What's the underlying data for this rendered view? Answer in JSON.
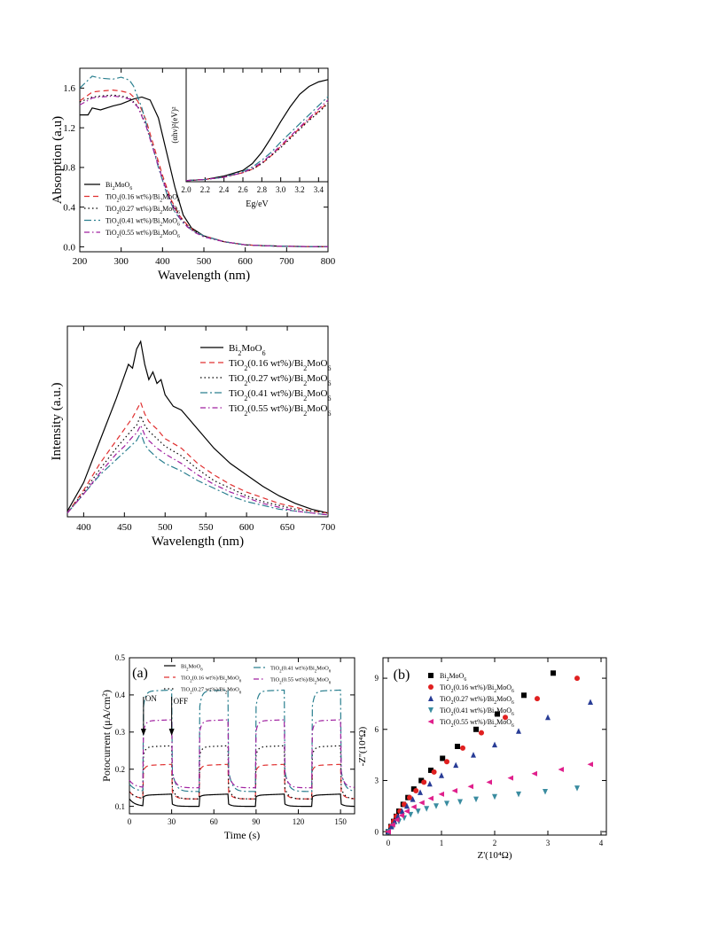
{
  "chart_data": [
    {
      "id": "absorption",
      "type": "line",
      "xlabel": "Wavelength (nm)",
      "ylabel": "Absorption (a.u)",
      "xlim": [
        200,
        800
      ],
      "ylim": [
        -0.05,
        1.8
      ],
      "xticks": [
        200,
        300,
        400,
        500,
        600,
        700,
        800
      ],
      "yticks": [
        0.0,
        0.4,
        0.8,
        1.2,
        1.6
      ],
      "ytick_labels": [
        "0.0",
        "0.4",
        "0.8",
        "1.2",
        "1.6"
      ],
      "legend": "bottom-left",
      "series": [
        {
          "name": "Bi2MoO6",
          "color": "#000000",
          "dash": "none",
          "x": [
            200,
            220,
            230,
            250,
            280,
            300,
            330,
            350,
            370,
            390,
            410,
            430,
            450,
            470,
            500,
            550,
            600,
            650,
            700,
            800
          ],
          "y": [
            1.33,
            1.33,
            1.4,
            1.38,
            1.42,
            1.44,
            1.49,
            1.51,
            1.48,
            1.3,
            0.95,
            0.6,
            0.32,
            0.19,
            0.11,
            0.05,
            0.02,
            0.01,
            0.005,
            0.0
          ]
        },
        {
          "name": "TiO2(0.16 wt%)/Bi2MoO6",
          "color": "#e03030",
          "dash": "6,4",
          "x": [
            200,
            230,
            250,
            280,
            300,
            320,
            340,
            360,
            380,
            400,
            420,
            440,
            460,
            480,
            500,
            550,
            600,
            650,
            700,
            800
          ],
          "y": [
            1.47,
            1.56,
            1.57,
            1.58,
            1.57,
            1.55,
            1.47,
            1.28,
            1.0,
            0.72,
            0.48,
            0.32,
            0.22,
            0.15,
            0.11,
            0.05,
            0.02,
            0.01,
            0.005,
            0.0
          ]
        },
        {
          "name": "TiO2(0.27 wt%)/Bi2MoO6",
          "color": "#000000",
          "dash": "1.5,3",
          "x": [
            200,
            230,
            250,
            280,
            300,
            320,
            340,
            360,
            380,
            400,
            420,
            440,
            460,
            480,
            500,
            550,
            600,
            650,
            700,
            800
          ],
          "y": [
            1.46,
            1.51,
            1.52,
            1.53,
            1.52,
            1.5,
            1.42,
            1.23,
            0.96,
            0.69,
            0.46,
            0.31,
            0.21,
            0.15,
            0.1,
            0.05,
            0.02,
            0.01,
            0.005,
            0.0
          ]
        },
        {
          "name": "TiO2(0.41 wt%)/Bi2MoO6",
          "color": "#2a7f8f",
          "dash": "8,3,2,3",
          "x": [
            200,
            220,
            230,
            250,
            280,
            300,
            320,
            330,
            350,
            370,
            390,
            410,
            430,
            450,
            470,
            500,
            550,
            600,
            650,
            700,
            800
          ],
          "y": [
            1.6,
            1.68,
            1.72,
            1.7,
            1.69,
            1.71,
            1.68,
            1.62,
            1.4,
            1.1,
            0.8,
            0.54,
            0.35,
            0.24,
            0.17,
            0.11,
            0.05,
            0.02,
            0.01,
            0.005,
            0.0
          ]
        },
        {
          "name": "TiO2(0.55 wt%)/Bi2MoO6",
          "color": "#a020a0",
          "dash": "6,3,1.5,3",
          "x": [
            200,
            230,
            250,
            280,
            300,
            320,
            340,
            360,
            380,
            400,
            420,
            440,
            460,
            480,
            500,
            550,
            600,
            650,
            700,
            800
          ],
          "y": [
            1.43,
            1.5,
            1.51,
            1.52,
            1.51,
            1.49,
            1.41,
            1.22,
            0.95,
            0.68,
            0.45,
            0.3,
            0.2,
            0.14,
            0.1,
            0.05,
            0.02,
            0.01,
            0.005,
            0.0
          ]
        }
      ]
    },
    {
      "id": "absorption-inset",
      "type": "line",
      "xlabel": "Eg/eV",
      "ylabel": "(αhν)²(eV)²",
      "xlim": [
        2.0,
        3.5
      ],
      "ylim": [
        0,
        10
      ],
      "xticks": [
        2.0,
        2.2,
        2.4,
        2.6,
        2.8,
        3.0,
        3.2,
        3.4
      ],
      "xtick_labels": [
        "2.0",
        "2.2",
        "2.4",
        "2.6",
        "2.8",
        "3.0",
        "3.2",
        "3.4"
      ],
      "series": [
        {
          "name": "Bi2MoO6",
          "color": "#000000",
          "dash": "none",
          "x": [
            2.0,
            2.2,
            2.4,
            2.6,
            2.7,
            2.8,
            2.9,
            3.0,
            3.1,
            3.2,
            3.3,
            3.4,
            3.5
          ],
          "y": [
            0.1,
            0.2,
            0.5,
            1.0,
            1.6,
            2.6,
            3.9,
            5.3,
            6.6,
            7.7,
            8.4,
            8.8,
            9.0
          ]
        },
        {
          "name": "TiO2(0.16 wt%)/Bi2MoO6",
          "color": "#e03030",
          "dash": "6,4",
          "x": [
            2.0,
            2.2,
            2.4,
            2.6,
            2.7,
            2.8,
            2.9,
            3.0,
            3.1,
            3.2,
            3.3,
            3.4,
            3.5
          ],
          "y": [
            0.1,
            0.2,
            0.4,
            0.8,
            1.1,
            1.6,
            2.3,
            3.1,
            3.9,
            4.7,
            5.5,
            6.2,
            7.0
          ]
        },
        {
          "name": "TiO2(0.27 wt%)/Bi2MoO6",
          "color": "#000000",
          "dash": "1.5,3",
          "x": [
            2.0,
            2.2,
            2.4,
            2.6,
            2.7,
            2.8,
            2.9,
            3.0,
            3.1,
            3.2,
            3.3,
            3.4,
            3.5
          ],
          "y": [
            0.1,
            0.2,
            0.4,
            0.8,
            1.1,
            1.6,
            2.3,
            3.0,
            3.8,
            4.6,
            5.4,
            6.1,
            6.9
          ]
        },
        {
          "name": "TiO2(0.41 wt%)/Bi2MoO6",
          "color": "#2a7f8f",
          "dash": "8,3,2,3",
          "x": [
            2.0,
            2.2,
            2.4,
            2.6,
            2.7,
            2.8,
            2.9,
            3.0,
            3.1,
            3.2,
            3.3,
            3.4,
            3.5
          ],
          "y": [
            0.1,
            0.2,
            0.4,
            0.9,
            1.3,
            1.9,
            2.6,
            3.5,
            4.3,
            5.1,
            5.9,
            6.7,
            7.5
          ]
        },
        {
          "name": "TiO2(0.55 wt%)/Bi2MoO6",
          "color": "#a020a0",
          "dash": "6,3,1.5,3",
          "x": [
            2.0,
            2.2,
            2.4,
            2.6,
            2.7,
            2.8,
            2.9,
            3.0,
            3.1,
            3.2,
            3.3,
            3.4,
            3.5
          ],
          "y": [
            0.1,
            0.2,
            0.4,
            0.8,
            1.2,
            1.7,
            2.4,
            3.2,
            4.0,
            4.8,
            5.6,
            6.4,
            7.2
          ]
        }
      ]
    },
    {
      "id": "pl",
      "type": "line",
      "xlabel": "Wavelength (nm)",
      "ylabel": "Intensity (a.u.)",
      "xlim": [
        380,
        700
      ],
      "ylim": [
        0,
        100
      ],
      "xticks": [
        400,
        450,
        500,
        550,
        600,
        650,
        700
      ],
      "legend": "top-right",
      "series": [
        {
          "name": "Bi2MoO6",
          "color": "#000000",
          "dash": "none",
          "x": [
            380,
            400,
            420,
            440,
            450,
            455,
            460,
            465,
            470,
            475,
            480,
            485,
            490,
            495,
            500,
            510,
            520,
            540,
            560,
            580,
            600,
            620,
            640,
            660,
            680,
            700
          ],
          "y": [
            3,
            18,
            40,
            62,
            74,
            80,
            78,
            88,
            92,
            80,
            72,
            76,
            70,
            72,
            64,
            58,
            56,
            46,
            36,
            28,
            22,
            16,
            11,
            7,
            4,
            2
          ]
        },
        {
          "name": "TiO2(0.16 wt%)/Bi2MoO6",
          "color": "#e03030",
          "dash": "6,4",
          "x": [
            380,
            400,
            420,
            440,
            450,
            460,
            465,
            470,
            475,
            480,
            490,
            500,
            520,
            540,
            560,
            580,
            600,
            620,
            640,
            660,
            680,
            700
          ],
          "y": [
            2,
            14,
            28,
            40,
            46,
            52,
            56,
            60,
            54,
            50,
            46,
            41,
            36,
            28,
            22,
            17,
            13,
            10,
            7,
            5,
            3,
            2
          ]
        },
        {
          "name": "TiO2(0.27 wt%)/Bi2MoO6",
          "color": "#000000",
          "dash": "1.5,3",
          "x": [
            380,
            400,
            420,
            440,
            450,
            460,
            465,
            470,
            475,
            480,
            490,
            500,
            520,
            540,
            560,
            580,
            600,
            620,
            640,
            660,
            680,
            700
          ],
          "y": [
            2,
            13,
            25,
            36,
            41,
            46,
            48,
            53,
            48,
            45,
            41,
            37,
            32,
            25,
            19,
            15,
            11,
            8,
            6,
            4,
            3,
            2
          ]
        },
        {
          "name": "TiO2(0.41 wt%)/Bi2MoO6",
          "color": "#2a7f8f",
          "dash": "8,3,2,3",
          "x": [
            380,
            400,
            420,
            440,
            450,
            460,
            465,
            470,
            475,
            480,
            490,
            500,
            520,
            540,
            560,
            580,
            600,
            620,
            640,
            660,
            680,
            700
          ],
          "y": [
            2,
            12,
            22,
            30,
            34,
            38,
            40,
            44,
            38,
            35,
            31,
            28,
            24,
            19,
            15,
            11,
            8,
            6,
            4,
            3,
            2,
            1
          ]
        },
        {
          "name": "TiO2(0.55 wt%)/Bi2MoO6",
          "color": "#a020a0",
          "dash": "6,3,1.5,3",
          "x": [
            380,
            400,
            420,
            440,
            450,
            460,
            465,
            470,
            475,
            480,
            490,
            500,
            520,
            540,
            560,
            580,
            600,
            620,
            640,
            660,
            680,
            700
          ],
          "y": [
            2,
            12,
            23,
            33,
            37,
            42,
            44,
            48,
            43,
            40,
            36,
            33,
            28,
            22,
            17,
            13,
            10,
            7,
            5,
            3,
            2,
            1
          ]
        }
      ]
    },
    {
      "id": "photocurrent",
      "type": "line",
      "title": "(a)",
      "xlabel": "Time (s)",
      "ylabel": "Potocurrent (μA/cm²)",
      "xlim": [
        0,
        160
      ],
      "ylim": [
        0.08,
        0.5
      ],
      "xticks": [
        0,
        30,
        60,
        90,
        120,
        150
      ],
      "yticks": [
        0.1,
        0.2,
        0.3,
        0.4,
        0.5
      ],
      "ytick_labels": [
        "0.1",
        "0.2",
        "0.3",
        "0.4",
        "0.5"
      ],
      "annotations": [
        "ON",
        "OFF"
      ],
      "legend": "top",
      "light_on_intervals": [
        [
          10,
          30
        ],
        [
          50,
          70
        ],
        [
          90,
          110
        ],
        [
          130,
          150
        ]
      ],
      "series": [
        {
          "name": "Bi2MoO6",
          "color": "#000000",
          "dash": "none",
          "on": 0.13,
          "off": 0.1
        },
        {
          "name": "TiO2(0.16 wt%)/Bi2MoO6",
          "color": "#e03030",
          "dash": "6,4",
          "on": 0.21,
          "off": 0.12
        },
        {
          "name": "TiO2(0.27 wt%)/Bi2MoO6",
          "color": "#000000",
          "dash": "1.5,3",
          "on": 0.26,
          "off": 0.12
        },
        {
          "name": "TiO2(0.41 wt%)/Bi2MoO6",
          "color": "#2a7f8f",
          "dash": "8,3,2,3",
          "on": 0.41,
          "off": 0.14
        },
        {
          "name": "TiO2(0.55 wt%)/Bi2MoO6",
          "color": "#a020a0",
          "dash": "6,3,1.5,3",
          "on": 0.33,
          "off": 0.15
        }
      ]
    },
    {
      "id": "eis",
      "type": "scatter",
      "title": "(b)",
      "xlabel": "Z'(10⁴Ω)",
      "ylabel": "-Z''(10⁴Ω)",
      "xlim": [
        -0.1,
        4.1
      ],
      "ylim": [
        -0.2,
        10.2
      ],
      "xticks": [
        0,
        1,
        2,
        3,
        4
      ],
      "yticks": [
        0,
        3,
        6,
        9
      ],
      "legend": "top-left",
      "series": [
        {
          "name": "Bi2MoO6",
          "color": "#000000",
          "marker": "square",
          "x": [
            0.0,
            0.05,
            0.1,
            0.15,
            0.2,
            0.28,
            0.37,
            0.48,
            0.62,
            0.8,
            1.02,
            1.3,
            1.65,
            2.05,
            2.55,
            3.1
          ],
          "y": [
            0.0,
            0.3,
            0.6,
            0.9,
            1.2,
            1.6,
            2.0,
            2.5,
            3.0,
            3.6,
            4.3,
            5.0,
            6.0,
            6.9,
            8.0,
            9.3
          ]
        },
        {
          "name": "TiO2(0.16 wt%)/Bi2MoO6",
          "color": "#e02020",
          "marker": "circle",
          "x": [
            0.0,
            0.05,
            0.1,
            0.15,
            0.22,
            0.3,
            0.4,
            0.52,
            0.67,
            0.86,
            1.1,
            1.4,
            1.75,
            2.2,
            2.8,
            3.55
          ],
          "y": [
            0.0,
            0.3,
            0.6,
            0.9,
            1.2,
            1.6,
            2.0,
            2.4,
            2.9,
            3.5,
            4.1,
            4.9,
            5.8,
            6.7,
            7.8,
            9.0
          ]
        },
        {
          "name": "TiO2(0.27 wt%)/Bi2MoO6",
          "color": "#283c96",
          "marker": "triangle-up",
          "x": [
            0.0,
            0.06,
            0.12,
            0.18,
            0.26,
            0.35,
            0.46,
            0.6,
            0.78,
            1.0,
            1.27,
            1.6,
            2.0,
            2.45,
            3.0,
            3.8
          ],
          "y": [
            0.0,
            0.3,
            0.6,
            0.9,
            1.2,
            1.5,
            1.9,
            2.3,
            2.8,
            3.3,
            3.9,
            4.5,
            5.1,
            5.9,
            6.7,
            7.6
          ]
        },
        {
          "name": "TiO2(0.41 wt%)/Bi2MoO6",
          "color": "#3a8ca0",
          "marker": "triangle-down",
          "x": [
            0.0,
            0.1,
            0.2,
            0.3,
            0.42,
            0.56,
            0.72,
            0.9,
            1.1,
            1.35,
            1.65,
            2.0,
            2.45,
            2.95,
            3.55
          ],
          "y": [
            0.0,
            0.35,
            0.6,
            0.8,
            1.0,
            1.2,
            1.35,
            1.5,
            1.65,
            1.75,
            1.9,
            2.05,
            2.2,
            2.35,
            2.55
          ]
        },
        {
          "name": "TiO2(0.55 wt%)/Bi2MoO6",
          "color": "#e0208c",
          "marker": "triangle-left",
          "x": [
            0.0,
            0.08,
            0.16,
            0.25,
            0.35,
            0.48,
            0.63,
            0.8,
            1.0,
            1.25,
            1.55,
            1.9,
            2.3,
            2.75,
            3.25,
            3.8
          ],
          "y": [
            0.0,
            0.4,
            0.7,
            0.95,
            1.2,
            1.45,
            1.7,
            1.95,
            2.2,
            2.4,
            2.65,
            2.9,
            3.15,
            3.4,
            3.65,
            3.95
          ]
        }
      ]
    }
  ]
}
